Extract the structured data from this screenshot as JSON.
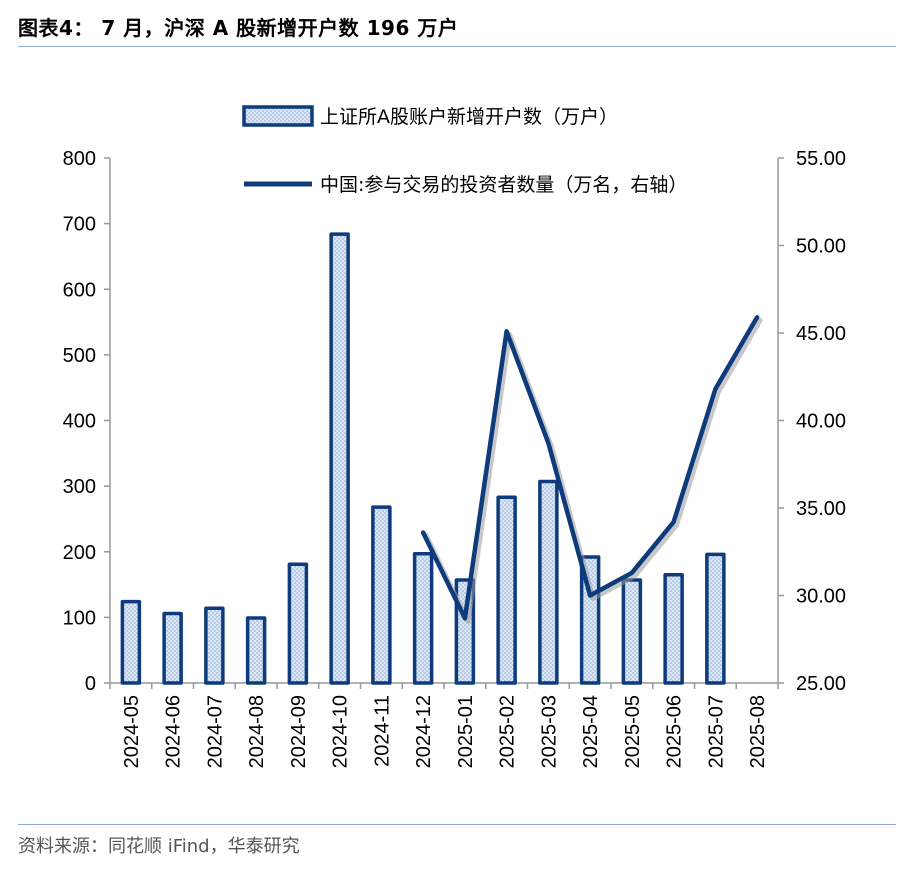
{
  "figure": {
    "title": "图表4： 7 月，沪深 A 股新增开户数 196 万户",
    "source": "资料来源：同花顺 iFind，华泰研究"
  },
  "colors": {
    "bar_edge": "#0d3b7c",
    "bar_fill": "#dde7f4",
    "bar_dot": "#9fbadf",
    "line": "#0d3b7c",
    "axis": "#999999",
    "rule": "#8eaad0"
  },
  "chart_data": {
    "type": "bar",
    "categories": [
      "2024-05",
      "2024-06",
      "2024-07",
      "2024-08",
      "2024-09",
      "2024-10",
      "2024-11",
      "2024-12",
      "2025-01",
      "2025-02",
      "2025-03",
      "2025-04",
      "2025-05",
      "2025-06",
      "2025-07",
      "2025-08"
    ],
    "series": [
      {
        "name": "上证所A股账户新增开户数（万户）",
        "type": "bar",
        "axis": "left",
        "values": [
          124,
          106,
          114,
          99,
          181,
          684,
          268,
          197,
          157,
          283,
          307,
          192,
          157,
          165,
          196,
          null
        ]
      },
      {
        "name": "中国:参与交易的投资者数量（万名，右轴）",
        "type": "line",
        "axis": "right",
        "values": [
          null,
          null,
          null,
          null,
          null,
          null,
          null,
          33.6,
          28.7,
          45.1,
          38.7,
          30.0,
          31.3,
          34.2,
          41.8,
          45.9
        ]
      }
    ],
    "y_left": {
      "lim": [
        0,
        800
      ],
      "ticks": [
        "0",
        "100",
        "200",
        "300",
        "400",
        "500",
        "600",
        "700",
        "800"
      ]
    },
    "y_right": {
      "lim": [
        25,
        55
      ],
      "ticks": [
        "25.00",
        "30.00",
        "35.00",
        "40.00",
        "45.00",
        "50.00",
        "55.00"
      ]
    },
    "grid": false,
    "legend": "top-right"
  }
}
